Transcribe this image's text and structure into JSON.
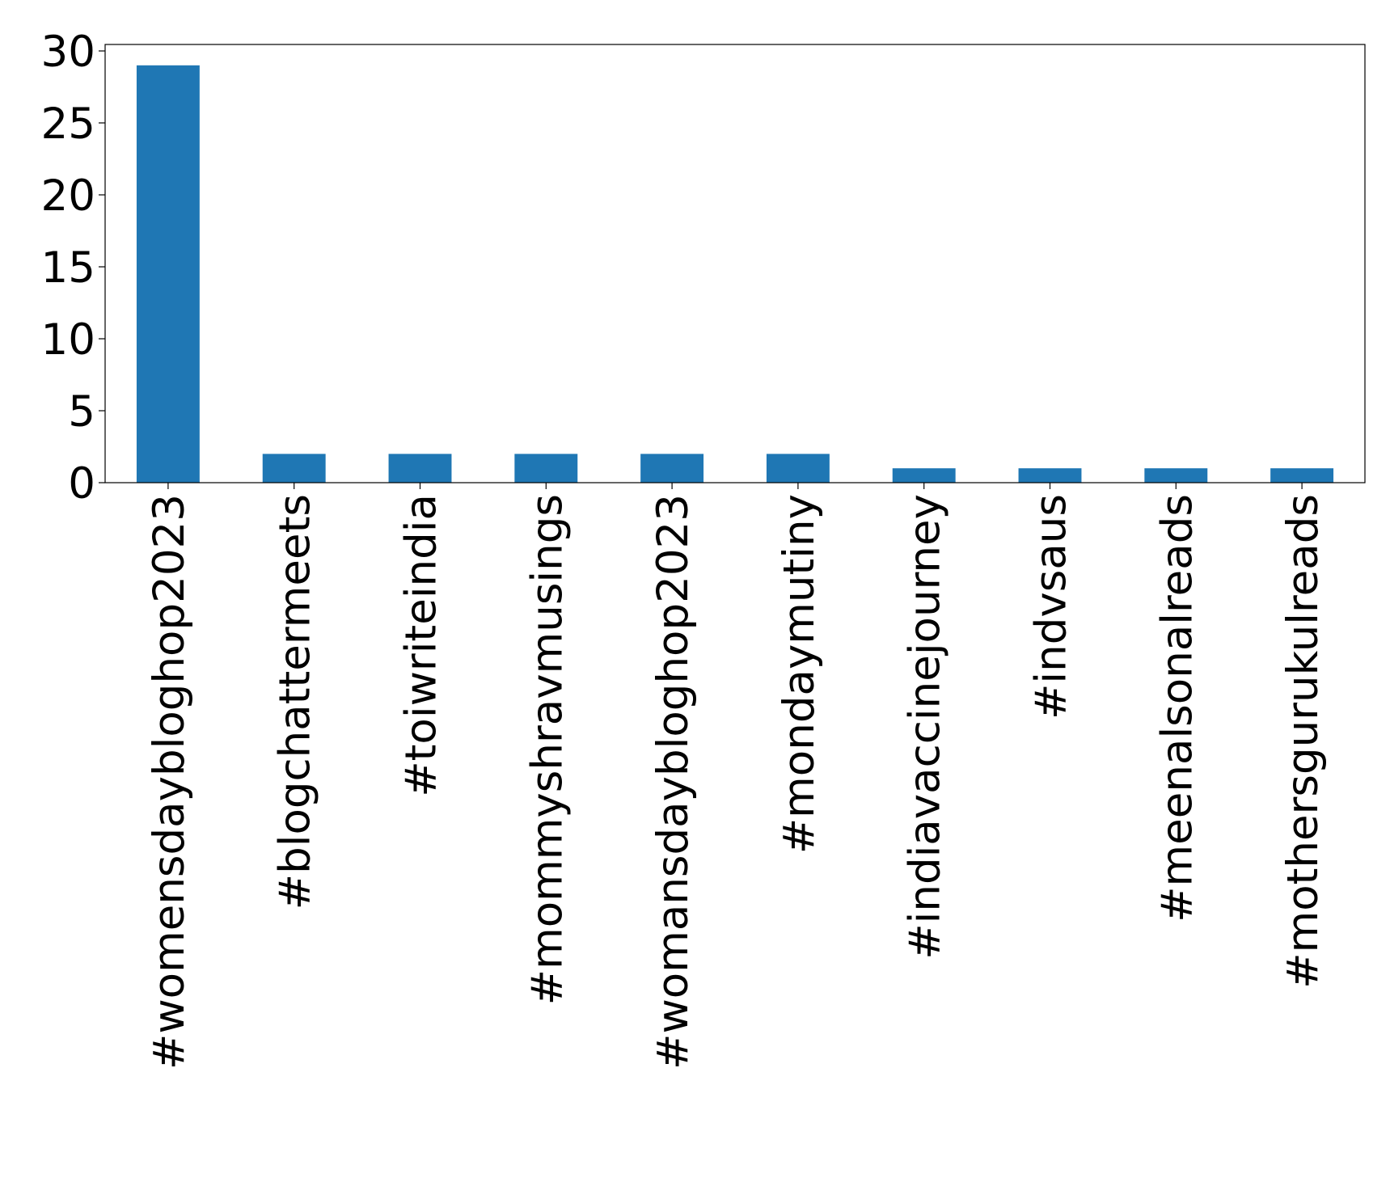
{
  "chart_data": {
    "type": "bar",
    "categories": [
      "#womensdaybloghop2023",
      "#blogchattermeets",
      "#toiwriteindia",
      "#mommyshravmusings",
      "#womansdaybloghop2023",
      "#mondaymutiny",
      "#indiavaccinejourney",
      "#indvsaus",
      "#meenalsonalreads",
      "#mothersgurukulreads"
    ],
    "values": [
      29,
      2,
      2,
      2,
      2,
      2,
      1,
      1,
      1,
      1
    ],
    "color": "#1f77b4",
    "ylim": [
      0,
      30.45
    ],
    "yticks": [
      0,
      5,
      10,
      15,
      20,
      25,
      30
    ],
    "grid": false
  }
}
